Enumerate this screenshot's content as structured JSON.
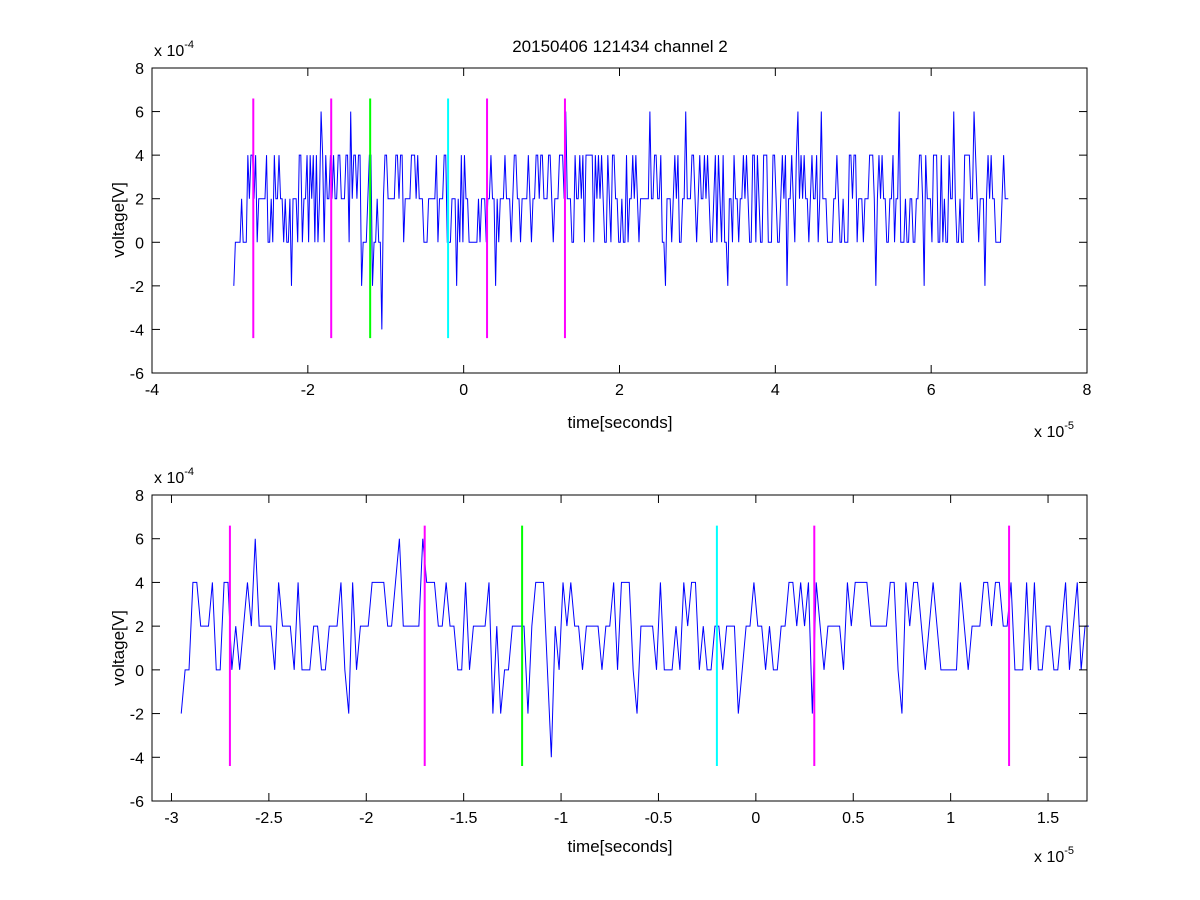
{
  "figure": {
    "title": "20150406 121434 channel 2"
  },
  "chart_data": [
    {
      "type": "line",
      "name": "full-trace",
      "title": "20150406 121434 channel 2",
      "xlabel": "time[seconds]",
      "ylabel": "voltage[V]",
      "x_multiplier": "x 10",
      "x_exponent": "-5",
      "y_multiplier": "x 10",
      "y_exponent": "-4",
      "xlim": [
        -4,
        8
      ],
      "ylim": [
        -6,
        8
      ],
      "xticks": [
        -4,
        -2,
        0,
        2,
        4,
        6,
        8
      ],
      "xtick_labels": [
        "-4",
        "-2",
        "0",
        "2",
        "4",
        "6",
        "8"
      ],
      "yticks": [
        -6,
        -4,
        -2,
        0,
        2,
        4,
        6,
        8
      ],
      "ytick_labels": [
        "-6",
        "-4",
        "-2",
        "0",
        "2",
        "4",
        "6",
        "8"
      ],
      "grid": false,
      "signal": {
        "color": "#0000ff",
        "x_start": -2.95,
        "x_end": 7.0,
        "step": 0.02,
        "levels": [
          -2,
          0,
          2,
          4,
          6
        ],
        "spikes": [
          {
            "x": -2.95,
            "y": -2
          },
          {
            "x": -2.2,
            "y": -2
          },
          {
            "x": -1.83,
            "y": 6
          },
          {
            "x": -1.45,
            "y": 6
          },
          {
            "x": -1.3,
            "y": -2
          },
          {
            "x": -1.18,
            "y": -2
          },
          {
            "x": -1.05,
            "y": -4
          },
          {
            "x": -0.1,
            "y": -2
          },
          {
            "x": 0.4,
            "y": -2
          },
          {
            "x": 1.3,
            "y": 6
          },
          {
            "x": 2.4,
            "y": 6
          },
          {
            "x": 2.6,
            "y": -2
          },
          {
            "x": 2.85,
            "y": 6
          },
          {
            "x": 3.4,
            "y": -2
          },
          {
            "x": 4.3,
            "y": 6
          },
          {
            "x": 4.6,
            "y": 6
          },
          {
            "x": 4.15,
            "y": -2
          },
          {
            "x": 5.3,
            "y": -2
          },
          {
            "x": 5.6,
            "y": 6
          },
          {
            "x": 5.9,
            "y": -2
          },
          {
            "x": 6.3,
            "y": 6
          },
          {
            "x": 6.55,
            "y": 6
          },
          {
            "x": 6.7,
            "y": -2
          }
        ]
      },
      "markers": [
        {
          "x": -2.7,
          "y0": -4.4,
          "y1": 6.6,
          "color": "#ff00ff"
        },
        {
          "x": -1.7,
          "y0": -4.4,
          "y1": 6.6,
          "color": "#ff00ff"
        },
        {
          "x": -1.2,
          "y0": -4.4,
          "y1": 6.6,
          "color": "#00ff00"
        },
        {
          "x": -0.2,
          "y0": -4.4,
          "y1": 6.6,
          "color": "#00ffff"
        },
        {
          "x": 0.3,
          "y0": -4.4,
          "y1": 6.6,
          "color": "#ff00ff"
        },
        {
          "x": 1.3,
          "y0": -4.4,
          "y1": 6.6,
          "color": "#ff00ff"
        }
      ]
    },
    {
      "type": "line",
      "name": "zoomed-trace",
      "title": "",
      "xlabel": "time[seconds]",
      "ylabel": "voltage[V]",
      "x_multiplier": "x 10",
      "x_exponent": "-5",
      "y_multiplier": "x 10",
      "y_exponent": "-4",
      "xlim": [
        -3.1,
        1.7
      ],
      "ylim": [
        -6,
        8
      ],
      "xticks": [
        -3,
        -2.5,
        -2,
        -1.5,
        -1,
        -0.5,
        0,
        0.5,
        1,
        1.5
      ],
      "xtick_labels": [
        "-3",
        "-2.5",
        "-2",
        "-1.5",
        "-1",
        "-0.5",
        "0",
        "0.5",
        "1",
        "1.5"
      ],
      "yticks": [
        -6,
        -4,
        -2,
        0,
        2,
        4,
        6,
        8
      ],
      "ytick_labels": [
        "-6",
        "-4",
        "-2",
        "0",
        "2",
        "4",
        "6",
        "8"
      ],
      "grid": false,
      "signal": {
        "color": "#0000ff",
        "x_start": -2.95,
        "x_end": 1.7,
        "step": 0.02,
        "levels": [
          -2,
          0,
          2,
          4,
          6
        ],
        "spikes": [
          {
            "x": -2.95,
            "y": -2
          },
          {
            "x": -2.9,
            "y": 4
          },
          {
            "x": -2.58,
            "y": 6
          },
          {
            "x": -2.1,
            "y": -2
          },
          {
            "x": -1.83,
            "y": 6
          },
          {
            "x": -1.72,
            "y": 6
          },
          {
            "x": -1.34,
            "y": -2
          },
          {
            "x": -1.3,
            "y": -2
          },
          {
            "x": -1.18,
            "y": -2
          },
          {
            "x": -1.05,
            "y": -4
          },
          {
            "x": -0.62,
            "y": -2
          },
          {
            "x": -0.1,
            "y": -2
          },
          {
            "x": 0.3,
            "y": -2
          },
          {
            "x": 0.75,
            "y": -2
          }
        ]
      },
      "markers": [
        {
          "x": -2.7,
          "y0": -4.4,
          "y1": 6.6,
          "color": "#ff00ff"
        },
        {
          "x": -1.7,
          "y0": -4.4,
          "y1": 6.6,
          "color": "#ff00ff"
        },
        {
          "x": -1.2,
          "y0": -4.4,
          "y1": 6.6,
          "color": "#00ff00"
        },
        {
          "x": -0.2,
          "y0": -4.4,
          "y1": 6.6,
          "color": "#00ffff"
        },
        {
          "x": 0.3,
          "y0": -4.4,
          "y1": 6.6,
          "color": "#ff00ff"
        },
        {
          "x": 1.3,
          "y0": -4.4,
          "y1": 6.6,
          "color": "#ff00ff"
        }
      ]
    }
  ]
}
